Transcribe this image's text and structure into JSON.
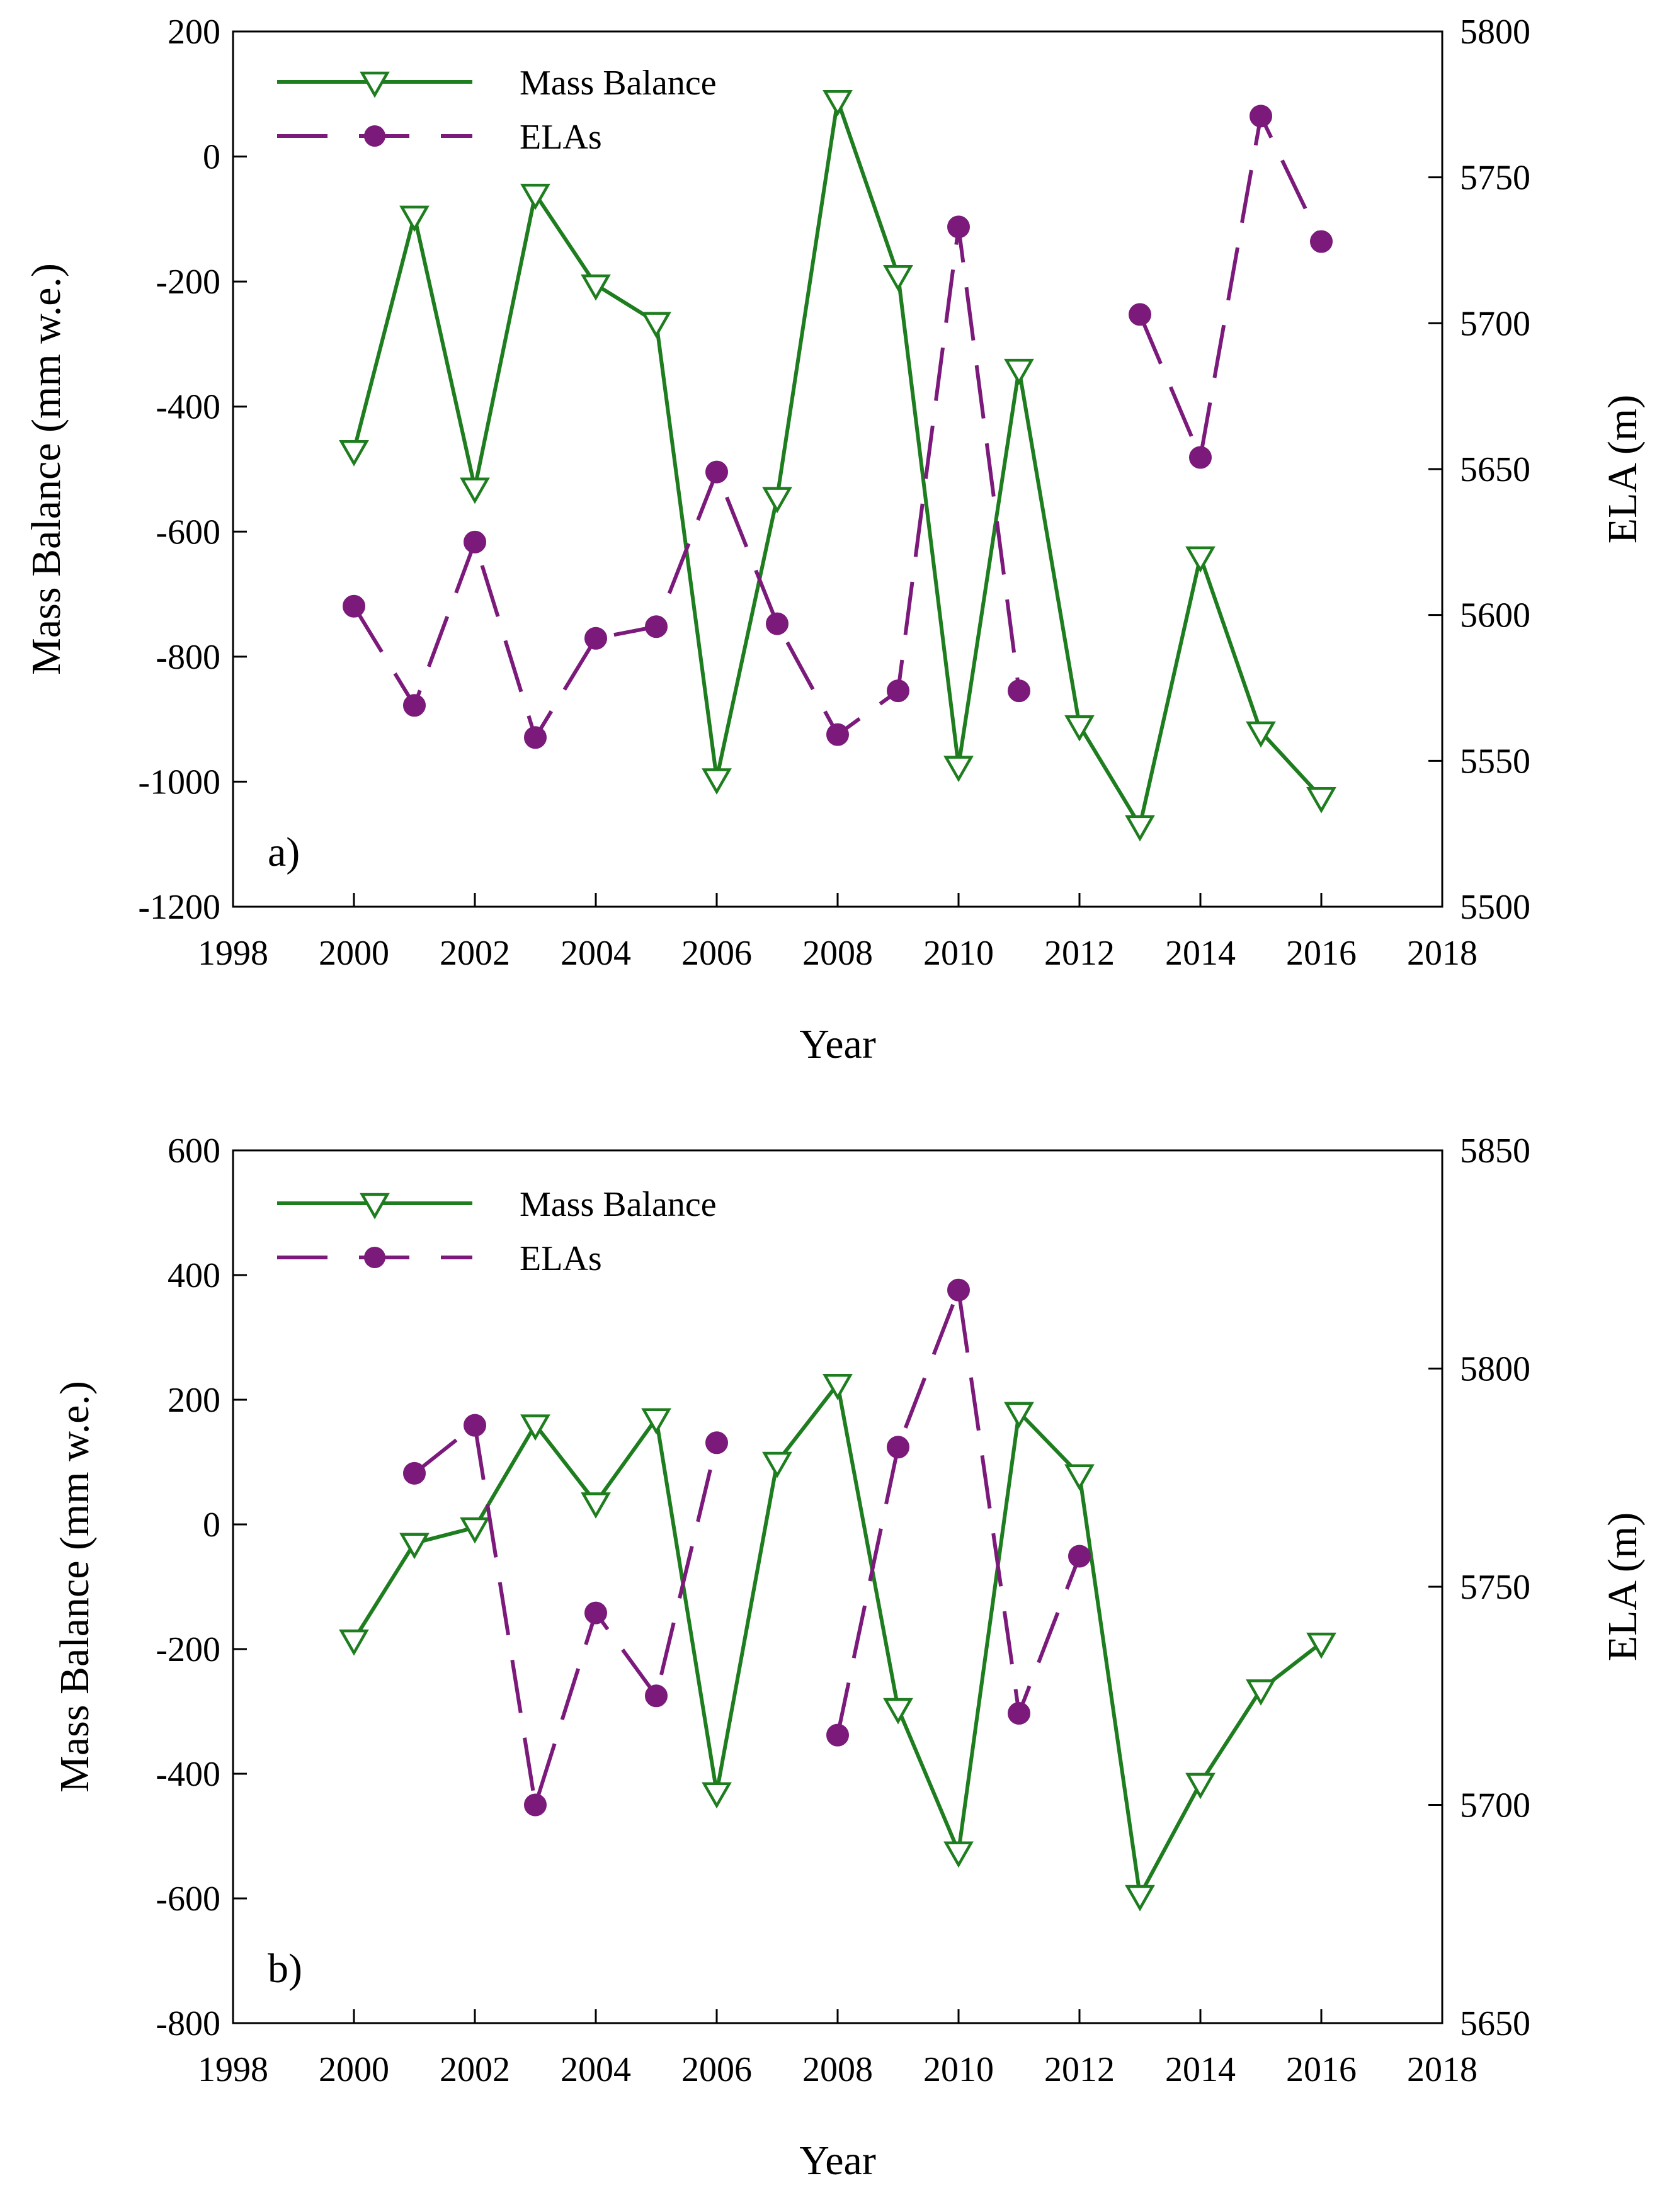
{
  "chart_data": [
    {
      "type": "line",
      "panel_label": "a)",
      "xlabel": "Year",
      "ylabel": "Mass Balance (mm w.e.)",
      "ylabel_right": "ELA (m)",
      "xlim": [
        1998,
        2018
      ],
      "ylim": [
        -1200,
        200
      ],
      "ylim_right": [
        5500,
        5800
      ],
      "xticks": [
        1998,
        2000,
        2002,
        2004,
        2006,
        2008,
        2010,
        2012,
        2014,
        2016,
        2018
      ],
      "yticks": [
        -1200,
        -1000,
        -800,
        -600,
        -400,
        -200,
        0,
        200
      ],
      "yticks_right": [
        5500,
        5550,
        5600,
        5650,
        5700,
        5750,
        5800
      ],
      "legend_position": "top-left",
      "series": [
        {
          "name": "Mass Balance",
          "axis": "left",
          "color": "#1e7d1e",
          "marker": "triangle-down-open",
          "line": "solid",
          "x": [
            2000,
            2001,
            2002,
            2003,
            2004,
            2005,
            2006,
            2007,
            2008,
            2009,
            2010,
            2011,
            2012,
            2013,
            2014,
            2015,
            2016
          ],
          "values": [
            -470,
            -95,
            -530,
            -60,
            -205,
            -265,
            -995,
            -545,
            90,
            -190,
            -975,
            -340,
            -910,
            -1070,
            -640,
            -920,
            -1025
          ]
        },
        {
          "name": "ELAs",
          "axis": "right",
          "color": "#7b1a7b",
          "marker": "circle-filled",
          "line": "dashed",
          "x": [
            2000,
            2001,
            2002,
            2003,
            2004,
            2005,
            2006,
            2007,
            2008,
            2009,
            2010,
            2011,
            2012,
            2013,
            2014,
            2015,
            2016
          ],
          "values": [
            5603,
            5569,
            5625,
            5558,
            5592,
            5596,
            5649,
            5597,
            5559,
            5574,
            5733,
            5574,
            null,
            5703,
            5654,
            5771,
            5728
          ]
        }
      ]
    },
    {
      "type": "line",
      "panel_label": "b)",
      "xlabel": "Year",
      "ylabel": "Mass Balance (mm w.e.)",
      "ylabel_right": "ELA (m)",
      "xlim": [
        1998,
        2018
      ],
      "ylim": [
        -800,
        600
      ],
      "ylim_right": [
        5650,
        5850
      ],
      "xticks": [
        1998,
        2000,
        2002,
        2004,
        2006,
        2008,
        2010,
        2012,
        2014,
        2016,
        2018
      ],
      "yticks": [
        -800,
        -600,
        -400,
        -200,
        0,
        200,
        400,
        600
      ],
      "yticks_right": [
        5650,
        5700,
        5750,
        5800,
        5850
      ],
      "legend_position": "top-left",
      "series": [
        {
          "name": "Mass Balance",
          "axis": "left",
          "color": "#1e7d1e",
          "marker": "triangle-down-open",
          "line": "solid",
          "x": [
            2000,
            2001,
            2002,
            2003,
            2004,
            2005,
            2006,
            2007,
            2008,
            2009,
            2010,
            2011,
            2012,
            2013,
            2014,
            2015,
            2016
          ],
          "values": [
            -185,
            -30,
            -5,
            160,
            35,
            170,
            -430,
            100,
            225,
            -295,
            -525,
            180,
            80,
            -595,
            -415,
            -265,
            -190
          ]
        },
        {
          "name": "ELAs",
          "axis": "right",
          "color": "#7b1a7b",
          "marker": "circle-filled",
          "line": "dashed",
          "x": [
            2001,
            2002,
            2003,
            2004,
            2005,
            2006,
            2007,
            2008,
            2009,
            2010,
            2011,
            2012
          ],
          "values": [
            5776,
            5787,
            5700,
            5744,
            5725,
            5783,
            null,
            5716,
            5782,
            5818,
            5721,
            5757
          ]
        }
      ]
    }
  ]
}
